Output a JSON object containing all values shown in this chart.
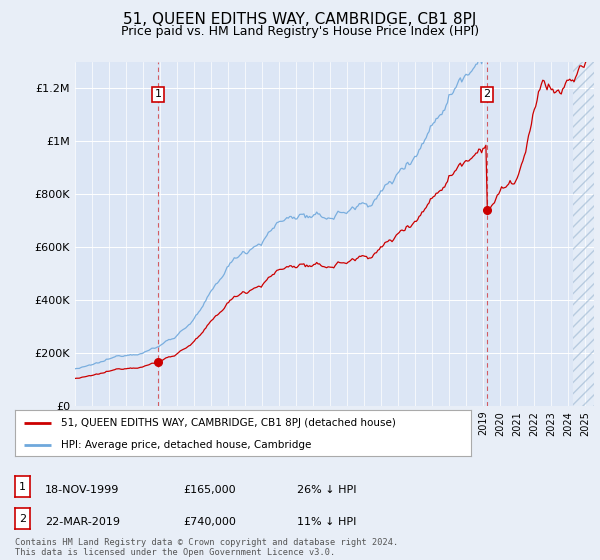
{
  "title": "51, QUEEN EDITHS WAY, CAMBRIDGE, CB1 8PJ",
  "subtitle": "Price paid vs. HM Land Registry's House Price Index (HPI)",
  "title_fontsize": 11,
  "subtitle_fontsize": 9,
  "background_color": "#e8eef7",
  "plot_bg_color": "#dce6f5",
  "hpi_color": "#6fa8dc",
  "price_color": "#cc0000",
  "ylim": [
    0,
    1300000
  ],
  "yticks": [
    0,
    200000,
    400000,
    600000,
    800000,
    1000000,
    1200000
  ],
  "ytick_labels": [
    "£0",
    "£200K",
    "£400K",
    "£600K",
    "£800K",
    "£1M",
    "£1.2M"
  ],
  "transaction1_year": 1999.88,
  "transaction1_price": 165000,
  "transaction2_year": 2019.22,
  "transaction2_price": 740000,
  "legend_label_price": "51, QUEEN EDITHS WAY, CAMBRIDGE, CB1 8PJ (detached house)",
  "legend_label_hpi": "HPI: Average price, detached house, Cambridge",
  "footer": "Contains HM Land Registry data © Crown copyright and database right 2024.\nThis data is licensed under the Open Government Licence v3.0.",
  "annotation1_label": "1",
  "annotation1_date": "18-NOV-1999",
  "annotation1_price": "£165,000",
  "annotation1_pct": "26% ↓ HPI",
  "annotation2_label": "2",
  "annotation2_date": "22-MAR-2019",
  "annotation2_price": "£740,000",
  "annotation2_pct": "11% ↓ HPI"
}
